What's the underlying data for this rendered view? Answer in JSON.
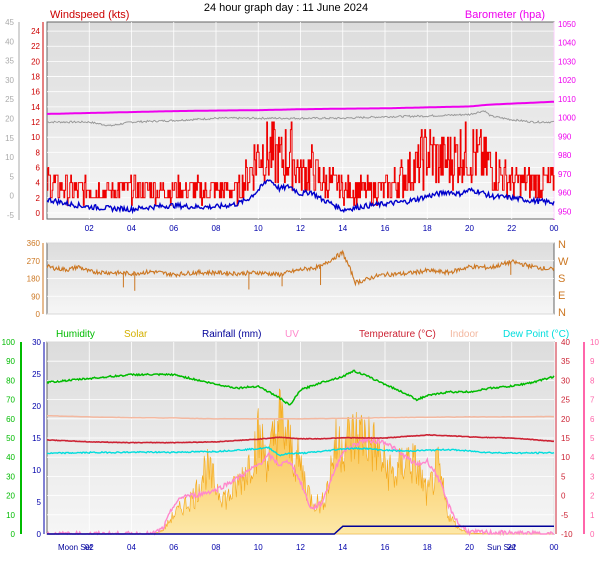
{
  "title": "24 hour graph day : 11 June 2024",
  "colors": {
    "wind": "#ee0000",
    "gust_axis": "#cc0000",
    "windavg": "#0000cc",
    "baro": "#ee00ee",
    "grey": "#999999",
    "winddir": "#cc7722",
    "humidity": "#00bb00",
    "solar": "#f5b43a",
    "rain": "#000099",
    "uv": "#ff88cc",
    "temp": "#cc2233",
    "indoor": "#f3b8a0",
    "dew": "#00dddd",
    "tick": "#0000aa",
    "uv_axis": "#ff66aa"
  },
  "chart_data": [
    {
      "type": "line",
      "title": "",
      "left_label": "Windspeed (kts)",
      "right_label": "Barometer (hpa)",
      "x_ticks": [
        "02",
        "04",
        "06",
        "08",
        "10",
        "12",
        "14",
        "16",
        "18",
        "20",
        "22",
        "00"
      ],
      "y_ticks_outer": [
        "-5",
        "0",
        "5",
        "10",
        "15",
        "20",
        "25",
        "30",
        "35",
        "40",
        "45"
      ],
      "y_ticks_wind": [
        "0",
        "2",
        "4",
        "6",
        "8",
        "10",
        "12",
        "14",
        "16",
        "18",
        "20",
        "22",
        "24"
      ],
      "y_ticks_baro": [
        "950",
        "960",
        "970",
        "980",
        "990",
        "1000",
        "1010",
        "1020",
        "1030",
        "1040",
        "1050"
      ],
      "series": [
        {
          "name": "",
          "key": "gust",
          "axis": "wind",
          "x": [
            0,
            1,
            2,
            3,
            4,
            5,
            6,
            7,
            8,
            9,
            9.5,
            10,
            10.5,
            11,
            11.5,
            12,
            12.5,
            13,
            13.5,
            14,
            15,
            16,
            17,
            17.5,
            18,
            18.5,
            19,
            19.5,
            20,
            20.5,
            21,
            22,
            23,
            24
          ],
          "y": [
            4,
            3,
            3,
            3,
            3,
            3,
            3,
            3,
            3,
            3,
            5,
            8,
            8,
            7,
            8,
            5,
            6,
            4,
            4,
            3,
            3,
            3,
            5,
            6,
            8,
            7,
            7,
            8,
            8,
            7,
            6,
            4,
            4,
            4
          ]
        },
        {
          "name": "",
          "key": "avg",
          "axis": "wind",
          "x": [
            0,
            1,
            2,
            3,
            4,
            5,
            6,
            7,
            8,
            9,
            9.5,
            10,
            10.5,
            11,
            11.5,
            12,
            12.5,
            13,
            13.5,
            14,
            15,
            16,
            17,
            17.5,
            18,
            18.5,
            19,
            19.5,
            20,
            20.5,
            21,
            22,
            23,
            24
          ],
          "y": [
            1.8,
            1.2,
            0.8,
            0.6,
            0.5,
            0.8,
            1.0,
            0.8,
            0.8,
            1.2,
            1.8,
            3.0,
            4.5,
            3.2,
            3.5,
            2.5,
            2.8,
            1.8,
            1.2,
            0.4,
            0.9,
            1.2,
            1.5,
            1.8,
            2.2,
            2.5,
            2.8,
            2.5,
            3.0,
            2.8,
            2.2,
            2.0,
            1.6,
            1.4
          ]
        },
        {
          "name": "",
          "key": "baro",
          "axis": "baro",
          "x": [
            0,
            2,
            4,
            6,
            8,
            10,
            12,
            14,
            16,
            18,
            20,
            21,
            22,
            23,
            24
          ],
          "y": [
            1002,
            1002.5,
            1003,
            1003.5,
            1003.8,
            1004,
            1004.5,
            1004.8,
            1005,
            1005.5,
            1006,
            1007,
            1007.5,
            1008,
            1008.5
          ]
        },
        {
          "name": "",
          "key": "grey",
          "axis": "wind",
          "x": [
            0,
            2,
            3,
            4,
            6,
            8,
            10,
            12,
            14,
            16,
            18,
            20,
            20.7,
            21,
            22,
            23,
            24
          ],
          "y": [
            12,
            12,
            11.5,
            12,
            12.2,
            12.5,
            12.5,
            12.5,
            12.5,
            12.7,
            12.8,
            13,
            13.5,
            12.8,
            12.3,
            12.0,
            12.0
          ]
        }
      ],
      "xlim": [
        0,
        24
      ],
      "ylim_wind": [
        -0.8,
        25.2
      ],
      "ylim_baro": [
        946,
        1051
      ]
    },
    {
      "type": "scatter",
      "title": "",
      "y_ticks": [
        "0",
        "90",
        "180",
        "270",
        "360"
      ],
      "compass": [
        "N",
        "W",
        "S",
        "E",
        "N"
      ],
      "series": [
        {
          "name": "",
          "key": "winddir",
          "x": [
            0,
            0.5,
            1,
            1.5,
            2,
            3,
            4,
            5,
            6,
            7,
            8,
            9,
            10,
            11,
            12,
            13,
            13.5,
            14,
            14.3,
            14.6,
            15,
            15.5,
            16,
            17,
            18,
            19,
            20,
            21,
            22,
            23,
            24
          ],
          "y": [
            240,
            230,
            225,
            240,
            215,
            210,
            205,
            215,
            200,
            210,
            210,
            205,
            210,
            200,
            225,
            240,
            280,
            310,
            240,
            160,
            170,
            190,
            200,
            205,
            220,
            210,
            240,
            235,
            265,
            240,
            225
          ]
        }
      ],
      "ylim": [
        0,
        360
      ],
      "xlim": [
        0,
        24
      ]
    },
    {
      "type": "line",
      "title": "",
      "legend": [
        "Humidity",
        "Solar",
        "Rainfall (mm)",
        "UV",
        "Temperature (°C)",
        "Indoor",
        "Dew Point (°C)"
      ],
      "y_ticks_humidity": [
        "0",
        "10",
        "20",
        "30",
        "40",
        "50",
        "60",
        "70",
        "80",
        "90",
        "100"
      ],
      "y_ticks_rain": [
        "0",
        "5",
        "10",
        "15",
        "20",
        "25",
        "30"
      ],
      "y_ticks_temp": [
        "-10",
        "-5",
        "0",
        "5",
        "10",
        "15",
        "20",
        "25",
        "30",
        "35",
        "40"
      ],
      "y_ticks_uv": [
        "0",
        "1",
        "2",
        "3",
        "4",
        "5",
        "6",
        "7",
        "8",
        "9",
        "10"
      ],
      "moon_set_label": "Moon Set",
      "sun_set_label": "Sun Set",
      "x_ticks": [
        "02",
        "04",
        "06",
        "08",
        "10",
        "12",
        "14",
        "16",
        "18",
        "20",
        "22",
        "00"
      ],
      "series": [
        {
          "name": "Humidity",
          "key": "humidity",
          "axis": "humidity",
          "x": [
            0,
            2,
            4,
            6,
            8,
            9,
            10,
            11,
            11.5,
            12,
            13,
            14,
            14.5,
            15,
            16,
            17,
            17.5,
            18,
            19,
            20,
            21,
            22,
            23,
            24
          ],
          "y": [
            79,
            81,
            83,
            83,
            78,
            76,
            77,
            71,
            67,
            75,
            79,
            82,
            85,
            83,
            78,
            73,
            70,
            72,
            74,
            74,
            76,
            77,
            79,
            82
          ]
        },
        {
          "name": "Temperature (°C)",
          "key": "temp",
          "axis": "temp",
          "x": [
            0,
            2,
            4,
            6,
            8,
            10,
            11,
            12,
            13,
            14,
            15,
            16,
            17,
            18,
            19,
            20,
            21,
            22,
            23,
            24
          ],
          "y": [
            14.5,
            14,
            13.8,
            13.8,
            14,
            14.7,
            15.2,
            14.8,
            14.8,
            15.1,
            15,
            15,
            15.4,
            15.8,
            15.6,
            15.3,
            15.1,
            15,
            14.6,
            14.1
          ]
        },
        {
          "name": "Indoor",
          "key": "indoor",
          "axis": "temp",
          "x": [
            0,
            2,
            4,
            6,
            8,
            10,
            12,
            14,
            16,
            18,
            20,
            22,
            24
          ],
          "y": [
            20.8,
            20.5,
            20.3,
            20.2,
            20,
            20,
            20,
            20.1,
            20.3,
            20.4,
            20.5,
            20.5,
            20.6
          ]
        },
        {
          "name": "Dew Point (°C)",
          "key": "dew",
          "axis": "temp",
          "x": [
            0,
            2,
            4,
            6,
            8,
            10,
            10.5,
            11,
            11.5,
            12,
            13,
            14,
            15,
            16,
            17,
            18,
            19,
            20,
            21,
            22,
            23,
            24
          ],
          "y": [
            11,
            11.2,
            11.3,
            11.3,
            11.5,
            12.2,
            12.5,
            10.5,
            11,
            11,
            11.5,
            12.2,
            12.3,
            11.8,
            11.6,
            11.8,
            12,
            11.6,
            11.2,
            11.1,
            11.1,
            11.2
          ]
        },
        {
          "name": "Solar",
          "key": "solar",
          "axis": "uv",
          "x": [
            0,
            5,
            5.5,
            6,
            6.5,
            7,
            7.5,
            8,
            8.5,
            9,
            9.5,
            10,
            10.5,
            11,
            11.5,
            12,
            12.5,
            13,
            13.3,
            13.6,
            14,
            14.5,
            15,
            15.5,
            16,
            16.5,
            17,
            17.5,
            18,
            18.5,
            19,
            19.5,
            20,
            21,
            24
          ],
          "y": [
            0,
            0,
            0.2,
            1,
            1.5,
            2,
            3.5,
            2.5,
            1.8,
            2.5,
            3.5,
            5,
            3.8,
            6,
            4.5,
            3.5,
            1.8,
            1.5,
            2.5,
            4.5,
            4.8,
            5,
            5.2,
            4.5,
            3.5,
            3,
            4,
            3.5,
            2,
            3.5,
            1,
            0.3,
            0.05,
            0,
            0
          ]
        },
        {
          "name": "UV",
          "key": "uv",
          "axis": "uv",
          "x": [
            0,
            5,
            5.5,
            6,
            6.5,
            7,
            8,
            9,
            10,
            10.5,
            11,
            11.5,
            12,
            12.5,
            13,
            13.5,
            14,
            15,
            16,
            17,
            17.5,
            18,
            18.5,
            19,
            19.5,
            20,
            24
          ],
          "y": [
            0,
            0,
            0.3,
            1.5,
            2,
            2,
            2.3,
            2.9,
            3.6,
            4.1,
            3.6,
            3.8,
            2.7,
            1.3,
            1.6,
            3,
            4.3,
            4.9,
            4.8,
            4,
            3.6,
            3.8,
            3,
            1.5,
            0.5,
            0.1,
            0
          ]
        },
        {
          "name": "Rainfall (mm)",
          "key": "rain",
          "axis": "rain",
          "x": [
            0,
            13.6,
            14,
            24
          ],
          "y": [
            0,
            0,
            1.2,
            1.2
          ]
        }
      ],
      "xlim": [
        0,
        24
      ]
    }
  ]
}
